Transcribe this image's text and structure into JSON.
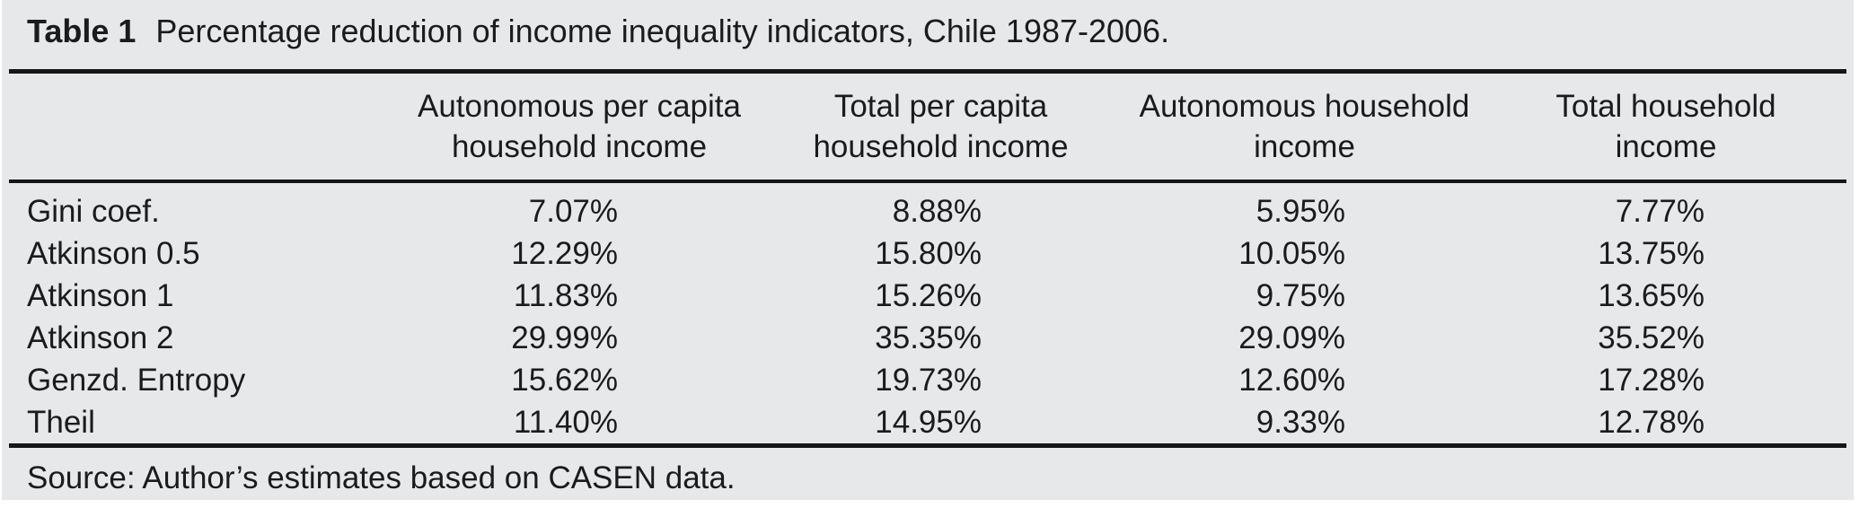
{
  "page": {
    "background": "#ffffff",
    "table_background": "#e7e8ea",
    "text_color": "#1b1b1d",
    "rule_color": "#161616"
  },
  "table": {
    "label": "Table 1",
    "caption": "Percentage reduction of income inequality indicators, Chile 1987-2006.",
    "headers": [
      {
        "line1": "Autonomous per capita",
        "line2": "household income"
      },
      {
        "line1": "Total per capita",
        "line2": "household income"
      },
      {
        "line1": "Autonomous household",
        "line2": "income"
      },
      {
        "line1": "Total household",
        "line2": "income"
      }
    ],
    "rows": [
      {
        "label": "Gini coef.",
        "values": [
          "7.07%",
          "8.88%",
          "5.95%",
          "7.77%"
        ]
      },
      {
        "label": "Atkinson 0.5",
        "values": [
          "12.29%",
          "15.80%",
          "10.05%",
          "13.75%"
        ]
      },
      {
        "label": "Atkinson 1",
        "values": [
          "11.83%",
          "15.26%",
          "9.75%",
          "13.65%"
        ]
      },
      {
        "label": "Atkinson 2",
        "values": [
          "29.99%",
          "35.35%",
          "29.09%",
          "35.52%"
        ]
      },
      {
        "label": "Genzd. Entropy",
        "values": [
          "15.62%",
          "19.73%",
          "12.60%",
          "17.28%"
        ]
      },
      {
        "label": "Theil",
        "values": [
          "11.40%",
          "14.95%",
          "9.33%",
          "12.78%"
        ]
      }
    ],
    "source": "Source: Author’s estimates based on CASEN data."
  }
}
